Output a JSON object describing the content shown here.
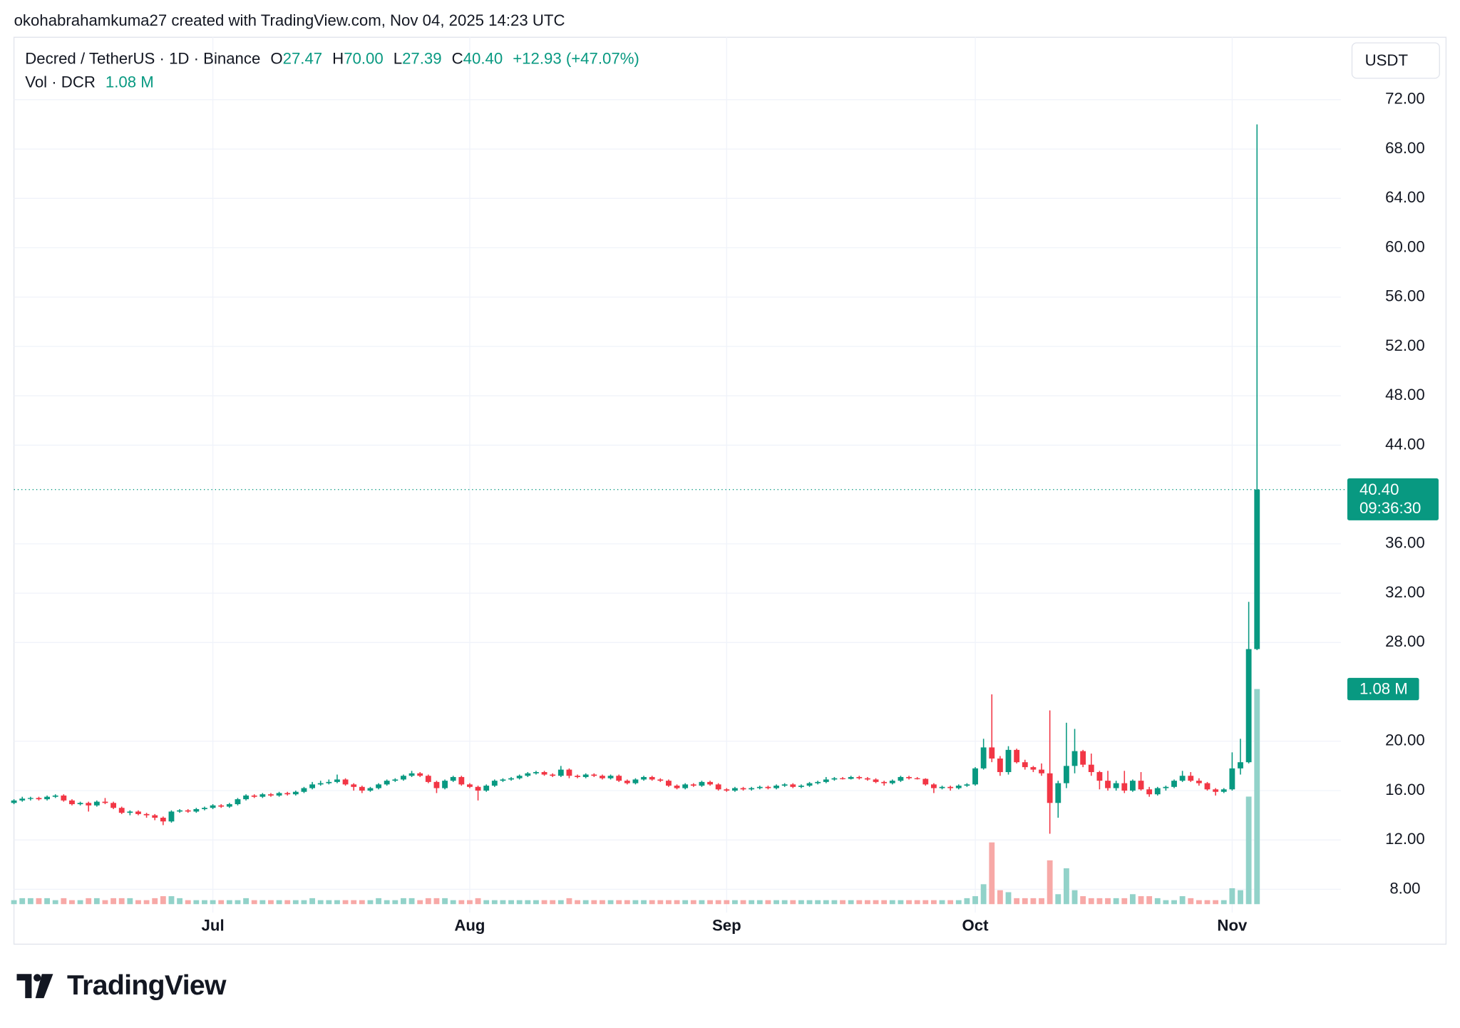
{
  "attribution": "okohabrahamkuma27 created with TradingView.com, Nov 04, 2025 14:23 UTC",
  "brand": "TradingView",
  "chart_data": {
    "type": "candlestick",
    "title": "Decred / TetherUS · 1D · Binance",
    "legend_ohlc": [
      {
        "key": "O",
        "value": "27.47"
      },
      {
        "key": "H",
        "value": "70.00"
      },
      {
        "key": "L",
        "value": "27.39"
      },
      {
        "key": "C",
        "value": "40.40"
      }
    ],
    "change": "+12.93 (+47.07%)",
    "currency": "USDT",
    "last_price_label": "40.40",
    "countdown": "09:36:30",
    "up_color": "#089981",
    "down_color": "#f23645",
    "ylim": [
      5.74,
      77.06
    ],
    "yticks": [
      {
        "value": 8,
        "label": "8.00"
      },
      {
        "value": 12,
        "label": "12.00"
      },
      {
        "value": 16,
        "label": "16.00"
      },
      {
        "value": 20,
        "label": "20.00"
      },
      {
        "value": 28,
        "label": "28.00"
      },
      {
        "value": 32,
        "label": "32.00"
      },
      {
        "value": 36,
        "label": "36.00"
      },
      {
        "value": 44,
        "label": "44.00"
      },
      {
        "value": 48,
        "label": "48.00"
      },
      {
        "value": 52,
        "label": "52.00"
      },
      {
        "value": 56,
        "label": "56.00"
      },
      {
        "value": 60,
        "label": "60.00"
      },
      {
        "value": 64,
        "label": "64.00"
      },
      {
        "value": 68,
        "label": "68.00"
      },
      {
        "value": 72,
        "label": "72.00"
      }
    ],
    "grid": true,
    "categories": [
      null,
      null,
      null,
      null,
      null,
      null,
      null,
      null,
      null,
      null,
      null,
      null,
      null,
      null,
      null,
      null,
      null,
      null,
      null,
      null,
      null,
      null,
      null,
      null,
      "Jul",
      null,
      null,
      null,
      null,
      null,
      null,
      null,
      null,
      null,
      null,
      null,
      null,
      null,
      null,
      null,
      null,
      null,
      null,
      null,
      null,
      null,
      null,
      null,
      null,
      null,
      null,
      null,
      null,
      null,
      null,
      "Aug",
      null,
      null,
      null,
      null,
      null,
      null,
      null,
      null,
      null,
      null,
      null,
      null,
      null,
      null,
      null,
      null,
      null,
      null,
      null,
      null,
      null,
      null,
      null,
      null,
      null,
      null,
      null,
      null,
      null,
      null,
      "Sep",
      null,
      null,
      null,
      null,
      null,
      null,
      null,
      null,
      null,
      null,
      null,
      null,
      null,
      null,
      null,
      null,
      null,
      null,
      null,
      null,
      null,
      null,
      null,
      null,
      null,
      null,
      null,
      null,
      null,
      "Oct",
      null,
      null,
      null,
      null,
      null,
      null,
      null,
      null,
      null,
      null,
      null,
      null,
      null,
      null,
      null,
      null,
      null,
      null,
      null,
      null,
      null,
      null,
      null,
      null,
      null,
      null,
      null,
      null,
      null,
      null,
      "Nov",
      null,
      null,
      null
    ],
    "ohlc": [
      [
        15.0,
        15.3,
        14.9,
        15.2
      ],
      [
        15.2,
        15.5,
        15.1,
        15.35
      ],
      [
        15.35,
        15.5,
        15.2,
        15.4
      ],
      [
        15.4,
        15.5,
        15.2,
        15.3
      ],
      [
        15.3,
        15.6,
        15.2,
        15.5
      ],
      [
        15.5,
        15.7,
        15.4,
        15.6
      ],
      [
        15.6,
        15.7,
        15.1,
        15.2
      ],
      [
        15.2,
        15.3,
        14.8,
        14.9
      ],
      [
        14.9,
        15.1,
        14.8,
        15.0
      ],
      [
        15.0,
        15.1,
        14.3,
        14.8
      ],
      [
        14.8,
        15.2,
        14.7,
        15.1
      ],
      [
        15.1,
        15.4,
        14.9,
        15.0
      ],
      [
        15.0,
        15.1,
        14.5,
        14.6
      ],
      [
        14.6,
        14.7,
        14.1,
        14.2
      ],
      [
        14.2,
        14.4,
        14.0,
        14.3
      ],
      [
        14.3,
        14.4,
        14.0,
        14.1
      ],
      [
        14.1,
        14.2,
        13.8,
        14.0
      ],
      [
        14.0,
        14.1,
        13.6,
        13.8
      ],
      [
        13.8,
        13.9,
        13.2,
        13.5
      ],
      [
        13.5,
        14.4,
        13.4,
        14.3
      ],
      [
        14.3,
        14.5,
        14.2,
        14.4
      ],
      [
        14.4,
        14.5,
        14.2,
        14.3
      ],
      [
        14.3,
        14.6,
        14.2,
        14.5
      ],
      [
        14.5,
        14.7,
        14.4,
        14.6
      ],
      [
        14.6,
        14.9,
        14.5,
        14.8
      ],
      [
        14.8,
        14.9,
        14.6,
        14.7
      ],
      [
        14.7,
        15.0,
        14.6,
        14.9
      ],
      [
        14.9,
        15.4,
        14.8,
        15.3
      ],
      [
        15.3,
        15.7,
        15.2,
        15.6
      ],
      [
        15.6,
        15.7,
        15.4,
        15.5
      ],
      [
        15.5,
        15.8,
        15.4,
        15.7
      ],
      [
        15.7,
        15.8,
        15.5,
        15.6
      ],
      [
        15.6,
        15.9,
        15.5,
        15.8
      ],
      [
        15.8,
        15.9,
        15.6,
        15.7
      ],
      [
        15.7,
        16.0,
        15.6,
        15.9
      ],
      [
        15.9,
        16.3,
        15.8,
        16.2
      ],
      [
        16.2,
        16.7,
        16.1,
        16.5
      ],
      [
        16.5,
        16.8,
        16.4,
        16.6
      ],
      [
        16.6,
        16.9,
        16.5,
        16.7
      ],
      [
        16.7,
        17.3,
        16.6,
        16.9
      ],
      [
        16.9,
        17.0,
        16.4,
        16.5
      ],
      [
        16.5,
        16.6,
        16.0,
        16.3
      ],
      [
        16.3,
        16.4,
        15.8,
        16.0
      ],
      [
        16.0,
        16.3,
        15.9,
        16.2
      ],
      [
        16.2,
        16.6,
        16.1,
        16.5
      ],
      [
        16.5,
        16.9,
        16.4,
        16.8
      ],
      [
        16.8,
        17.0,
        16.7,
        16.9
      ],
      [
        16.9,
        17.3,
        16.8,
        17.2
      ],
      [
        17.2,
        17.6,
        17.1,
        17.4
      ],
      [
        17.4,
        17.5,
        17.1,
        17.2
      ],
      [
        17.2,
        17.3,
        16.6,
        16.7
      ],
      [
        16.7,
        16.8,
        15.8,
        16.2
      ],
      [
        16.2,
        16.9,
        16.1,
        16.8
      ],
      [
        16.8,
        17.2,
        16.7,
        17.1
      ],
      [
        17.1,
        17.2,
        16.4,
        16.5
      ],
      [
        16.5,
        16.6,
        16.2,
        16.3
      ],
      [
        16.3,
        16.4,
        15.2,
        16.0
      ],
      [
        16.0,
        16.5,
        15.9,
        16.4
      ],
      [
        16.4,
        16.9,
        16.3,
        16.8
      ],
      [
        16.8,
        17.0,
        16.7,
        16.9
      ],
      [
        16.9,
        17.1,
        16.8,
        17.0
      ],
      [
        17.0,
        17.3,
        16.9,
        17.2
      ],
      [
        17.2,
        17.5,
        17.1,
        17.4
      ],
      [
        17.4,
        17.6,
        17.3,
        17.5
      ],
      [
        17.5,
        17.6,
        17.2,
        17.3
      ],
      [
        17.3,
        17.4,
        17.1,
        17.2
      ],
      [
        17.2,
        18.0,
        17.1,
        17.7
      ],
      [
        17.7,
        17.8,
        17.0,
        17.2
      ],
      [
        17.2,
        17.3,
        17.0,
        17.1
      ],
      [
        17.1,
        17.4,
        17.0,
        17.3
      ],
      [
        17.3,
        17.4,
        17.1,
        17.2
      ],
      [
        17.2,
        17.3,
        16.9,
        17.0
      ],
      [
        17.0,
        17.3,
        16.9,
        17.2
      ],
      [
        17.2,
        17.3,
        16.7,
        16.8
      ],
      [
        16.8,
        16.9,
        16.5,
        16.6
      ],
      [
        16.6,
        17.0,
        16.5,
        16.9
      ],
      [
        16.9,
        17.2,
        16.8,
        17.1
      ],
      [
        17.1,
        17.2,
        16.8,
        16.9
      ],
      [
        16.9,
        17.0,
        16.7,
        16.8
      ],
      [
        16.8,
        16.9,
        16.3,
        16.4
      ],
      [
        16.4,
        16.5,
        16.1,
        16.2
      ],
      [
        16.2,
        16.6,
        16.1,
        16.5
      ],
      [
        16.5,
        16.6,
        16.3,
        16.4
      ],
      [
        16.4,
        16.8,
        16.3,
        16.7
      ],
      [
        16.7,
        16.8,
        16.4,
        16.5
      ],
      [
        16.5,
        16.6,
        16.0,
        16.1
      ],
      [
        16.1,
        16.2,
        15.9,
        16.0
      ],
      [
        16.0,
        16.3,
        15.9,
        16.2
      ],
      [
        16.2,
        16.3,
        16.0,
        16.1
      ],
      [
        16.1,
        16.3,
        16.0,
        16.2
      ],
      [
        16.2,
        16.4,
        16.1,
        16.3
      ],
      [
        16.3,
        16.4,
        16.1,
        16.2
      ],
      [
        16.2,
        16.5,
        16.1,
        16.4
      ],
      [
        16.4,
        16.6,
        16.3,
        16.5
      ],
      [
        16.5,
        16.6,
        16.2,
        16.3
      ],
      [
        16.3,
        16.5,
        16.2,
        16.4
      ],
      [
        16.4,
        16.7,
        16.3,
        16.6
      ],
      [
        16.6,
        16.8,
        16.5,
        16.7
      ],
      [
        16.7,
        17.1,
        16.6,
        16.9
      ],
      [
        16.9,
        17.1,
        16.8,
        17.0
      ],
      [
        17.0,
        17.1,
        16.9,
        16.95
      ],
      [
        16.95,
        17.2,
        16.9,
        17.1
      ],
      [
        17.1,
        17.2,
        16.9,
        17.0
      ],
      [
        17.0,
        17.1,
        16.8,
        16.9
      ],
      [
        16.9,
        17.0,
        16.6,
        16.7
      ],
      [
        16.7,
        16.8,
        16.4,
        16.6
      ],
      [
        16.6,
        16.9,
        16.5,
        16.8
      ],
      [
        16.8,
        17.2,
        16.7,
        17.1
      ],
      [
        17.1,
        17.2,
        16.9,
        17.0
      ],
      [
        17.0,
        17.1,
        16.9,
        16.95
      ],
      [
        16.95,
        17.0,
        16.4,
        16.5
      ],
      [
        16.5,
        16.6,
        15.8,
        16.2
      ],
      [
        16.2,
        16.4,
        16.1,
        16.3
      ],
      [
        16.3,
        16.4,
        16.0,
        16.2
      ],
      [
        16.2,
        16.5,
        16.1,
        16.4
      ],
      [
        16.4,
        16.6,
        16.3,
        16.5
      ],
      [
        16.5,
        17.9,
        16.4,
        17.8
      ],
      [
        17.8,
        20.2,
        17.7,
        19.5
      ],
      [
        19.5,
        23.8,
        18.3,
        18.6
      ],
      [
        18.6,
        18.8,
        17.2,
        17.5
      ],
      [
        17.5,
        19.6,
        17.3,
        19.3
      ],
      [
        19.3,
        19.4,
        18.2,
        18.3
      ],
      [
        18.3,
        18.5,
        17.7,
        17.9
      ],
      [
        17.9,
        18.0,
        17.5,
        17.7
      ],
      [
        17.7,
        18.2,
        17.2,
        17.4
      ],
      [
        17.4,
        22.5,
        12.5,
        15.0
      ],
      [
        15.0,
        16.8,
        13.8,
        16.6
      ],
      [
        16.6,
        21.5,
        16.2,
        18.0
      ],
      [
        18.0,
        21.0,
        17.4,
        19.2
      ],
      [
        19.2,
        19.3,
        17.9,
        18.1
      ],
      [
        18.1,
        19.0,
        17.2,
        17.5
      ],
      [
        17.5,
        17.6,
        16.1,
        16.8
      ],
      [
        16.8,
        17.6,
        16.0,
        16.2
      ],
      [
        16.2,
        16.8,
        16.0,
        16.6
      ],
      [
        16.6,
        17.6,
        15.8,
        16.0
      ],
      [
        16.0,
        16.9,
        15.9,
        16.8
      ],
      [
        16.8,
        17.5,
        16.0,
        16.1
      ],
      [
        16.1,
        16.3,
        15.5,
        15.7
      ],
      [
        15.7,
        16.3,
        15.6,
        16.2
      ],
      [
        16.2,
        16.4,
        16.0,
        16.3
      ],
      [
        16.3,
        16.9,
        16.2,
        16.8
      ],
      [
        16.8,
        17.6,
        16.7,
        17.2
      ],
      [
        17.2,
        17.5,
        16.7,
        16.8
      ],
      [
        16.8,
        17.0,
        16.4,
        16.6
      ],
      [
        16.6,
        16.7,
        16.0,
        16.1
      ],
      [
        16.1,
        16.2,
        15.6,
        15.9
      ],
      [
        15.9,
        16.2,
        15.8,
        16.1
      ],
      [
        16.1,
        19.1,
        16.0,
        17.8
      ],
      [
        17.8,
        20.2,
        17.3,
        18.3
      ],
      [
        18.3,
        31.3,
        18.2,
        27.47
      ],
      [
        27.47,
        70.0,
        27.39,
        40.4
      ]
    ],
    "volume": {
      "name": "Vol · DCR",
      "last_label": "1.08 M",
      "up_color": "#92d2c9",
      "down_color": "#f7a9a7",
      "values": [
        0.02,
        0.03,
        0.03,
        0.03,
        0.03,
        0.02,
        0.03,
        0.02,
        0.02,
        0.03,
        0.03,
        0.02,
        0.03,
        0.03,
        0.03,
        0.02,
        0.02,
        0.03,
        0.04,
        0.04,
        0.03,
        0.02,
        0.02,
        0.02,
        0.02,
        0.02,
        0.02,
        0.02,
        0.03,
        0.02,
        0.02,
        0.02,
        0.02,
        0.02,
        0.02,
        0.02,
        0.03,
        0.02,
        0.02,
        0.02,
        0.02,
        0.02,
        0.02,
        0.02,
        0.03,
        0.02,
        0.02,
        0.03,
        0.03,
        0.02,
        0.03,
        0.03,
        0.03,
        0.02,
        0.02,
        0.02,
        0.03,
        0.02,
        0.02,
        0.02,
        0.02,
        0.02,
        0.02,
        0.02,
        0.02,
        0.02,
        0.02,
        0.03,
        0.02,
        0.02,
        0.02,
        0.02,
        0.02,
        0.02,
        0.02,
        0.02,
        0.02,
        0.02,
        0.02,
        0.02,
        0.02,
        0.02,
        0.02,
        0.02,
        0.02,
        0.02,
        0.02,
        0.02,
        0.02,
        0.02,
        0.02,
        0.02,
        0.02,
        0.02,
        0.02,
        0.02,
        0.02,
        0.02,
        0.02,
        0.02,
        0.02,
        0.02,
        0.02,
        0.02,
        0.02,
        0.02,
        0.02,
        0.02,
        0.02,
        0.02,
        0.02,
        0.02,
        0.02,
        0.02,
        0.02,
        0.03,
        0.04,
        0.1,
        0.31,
        0.07,
        0.06,
        0.03,
        0.03,
        0.03,
        0.03,
        0.22,
        0.05,
        0.18,
        0.07,
        0.04,
        0.03,
        0.03,
        0.03,
        0.03,
        0.03,
        0.05,
        0.04,
        0.04,
        0.03,
        0.02,
        0.02,
        0.04,
        0.03,
        0.02,
        0.02,
        0.02,
        0.02,
        0.08,
        0.07,
        0.54,
        1.08
      ]
    }
  }
}
